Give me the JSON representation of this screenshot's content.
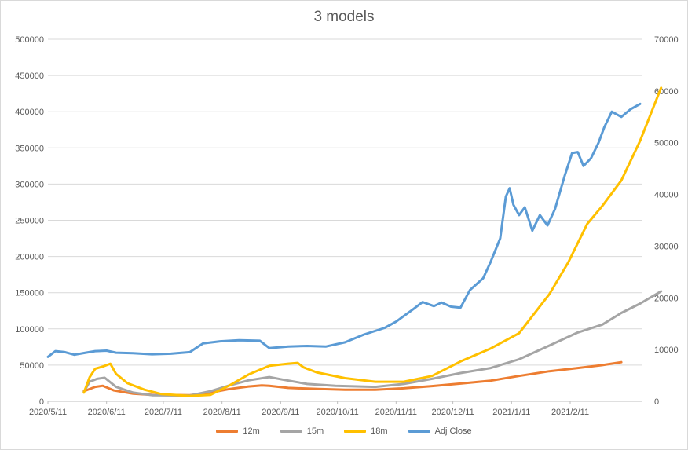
{
  "chart_data": {
    "type": "line",
    "title": "3 models",
    "x_dates": [
      "2020/5/11",
      "2020/6/11",
      "2020/7/11",
      "2020/8/11",
      "2020/9/11",
      "2020/10/11",
      "2020/11/11",
      "2020/12/11",
      "2021/1/11",
      "2021/2/11"
    ],
    "x_tick_labels": [
      "2020/5/11",
      "2020/6/11",
      "2020/7/11",
      "2020/8/11",
      "2020/9/11",
      "2020/10/11",
      "2020/11/11",
      "2020/12/11",
      "2021/1/11",
      "2021/2/11"
    ],
    "y_left_ticks": [
      "0",
      "50000",
      "100000",
      "150000",
      "200000",
      "250000",
      "300000",
      "350000",
      "400000",
      "450000",
      "500000"
    ],
    "y_left_lim": [
      0,
      500000
    ],
    "y_right_ticks": [
      "0",
      "10000",
      "20000",
      "30000",
      "40000",
      "50000",
      "60000",
      "70000"
    ],
    "y_right_lim": [
      0,
      70000
    ],
    "grid": true,
    "legend_position": "bottom",
    "series": [
      {
        "name": "12m",
        "axis": "left",
        "color": "#ED7D31",
        "points": [
          [
            "2020/5/30",
            14000
          ],
          [
            "2020/6/5",
            20000
          ],
          [
            "2020/6/9",
            21500
          ],
          [
            "2020/6/15",
            15000
          ],
          [
            "2020/6/25",
            10500
          ],
          [
            "2020/7/5",
            9000
          ],
          [
            "2020/7/25",
            8500
          ],
          [
            "2020/8/5",
            12000
          ],
          [
            "2020/8/15",
            17000
          ],
          [
            "2020/8/25",
            20500
          ],
          [
            "2020/9/1",
            22000
          ],
          [
            "2020/9/5",
            21500
          ],
          [
            "2020/9/15",
            18500
          ],
          [
            "2020/10/1",
            17000
          ],
          [
            "2020/10/15",
            16000
          ],
          [
            "2020/10/31",
            16000
          ],
          [
            "2020/11/15",
            18000
          ],
          [
            "2020/11/30",
            21000
          ],
          [
            "2020/12/15",
            24500
          ],
          [
            "2020/12/31",
            28500
          ],
          [
            "2021/1/15",
            35000
          ],
          [
            "2021/1/31",
            41500
          ],
          [
            "2021/2/15",
            46000
          ],
          [
            "2021/2/28",
            50000
          ],
          [
            "2021/3/10",
            54000
          ]
        ]
      },
      {
        "name": "15m",
        "axis": "left",
        "color": "#A5A5A5",
        "points": [
          [
            "2020/5/30",
            13000
          ],
          [
            "2020/6/2",
            27000
          ],
          [
            "2020/6/6",
            31000
          ],
          [
            "2020/6/10",
            32500
          ],
          [
            "2020/6/16",
            20000
          ],
          [
            "2020/6/25",
            12000
          ],
          [
            "2020/7/5",
            8500
          ],
          [
            "2020/7/25",
            8000
          ],
          [
            "2020/8/5",
            14000
          ],
          [
            "2020/8/15",
            22000
          ],
          [
            "2020/8/25",
            29000
          ],
          [
            "2020/9/5",
            33500
          ],
          [
            "2020/9/12",
            30000
          ],
          [
            "2020/9/25",
            24000
          ],
          [
            "2020/10/10",
            21500
          ],
          [
            "2020/10/31",
            20000
          ],
          [
            "2020/11/15",
            24000
          ],
          [
            "2020/11/30",
            31000
          ],
          [
            "2020/12/15",
            39000
          ],
          [
            "2020/12/31",
            46000
          ],
          [
            "2021/1/15",
            58000
          ],
          [
            "2021/1/31",
            77000
          ],
          [
            "2021/2/15",
            95000
          ],
          [
            "2021/2/28",
            106000
          ],
          [
            "2021/3/10",
            122000
          ],
          [
            "2021/3/20",
            135000
          ],
          [
            "2021/3/31",
            152000
          ]
        ]
      },
      {
        "name": "18m",
        "axis": "left",
        "color": "#FFC000",
        "points": [
          [
            "2020/5/30",
            12000
          ],
          [
            "2020/6/2",
            33000
          ],
          [
            "2020/6/5",
            45000
          ],
          [
            "2020/6/9",
            48000
          ],
          [
            "2020/6/13",
            52000
          ],
          [
            "2020/6/16",
            38000
          ],
          [
            "2020/6/22",
            25000
          ],
          [
            "2020/7/1",
            16000
          ],
          [
            "2020/7/10",
            10000
          ],
          [
            "2020/7/25",
            7500
          ],
          [
            "2020/8/5",
            9000
          ],
          [
            "2020/8/15",
            22000
          ],
          [
            "2020/8/25",
            37000
          ],
          [
            "2020/9/5",
            49000
          ],
          [
            "2020/9/15",
            52000
          ],
          [
            "2020/9/20",
            53000
          ],
          [
            "2020/9/23",
            47000
          ],
          [
            "2020/9/30",
            40000
          ],
          [
            "2020/10/15",
            32000
          ],
          [
            "2020/10/31",
            27000
          ],
          [
            "2020/11/15",
            27000
          ],
          [
            "2020/11/30",
            35000
          ],
          [
            "2020/12/15",
            55000
          ],
          [
            "2020/12/31",
            73000
          ],
          [
            "2021/1/15",
            94000
          ],
          [
            "2021/1/31",
            148000
          ],
          [
            "2021/2/10",
            192000
          ],
          [
            "2021/2/20",
            245000
          ],
          [
            "2021/2/28",
            270000
          ],
          [
            "2021/3/10",
            305000
          ],
          [
            "2021/3/20",
            360000
          ],
          [
            "2021/3/31",
            433000
          ]
        ]
      },
      {
        "name": "Adj Close",
        "axis": "right",
        "color": "#5B9BD5",
        "points": [
          [
            "2020/5/11",
            8600
          ],
          [
            "2020/5/15",
            9700
          ],
          [
            "2020/5/20",
            9500
          ],
          [
            "2020/5/25",
            9000
          ],
          [
            "2020/5/31",
            9400
          ],
          [
            "2020/6/5",
            9700
          ],
          [
            "2020/6/11",
            9800
          ],
          [
            "2020/6/16",
            9400
          ],
          [
            "2020/6/25",
            9300
          ],
          [
            "2020/7/5",
            9100
          ],
          [
            "2020/7/15",
            9200
          ],
          [
            "2020/7/25",
            9500
          ],
          [
            "2020/8/1",
            11200
          ],
          [
            "2020/8/10",
            11600
          ],
          [
            "2020/8/20",
            11800
          ],
          [
            "2020/8/31",
            11700
          ],
          [
            "2020/9/5",
            10300
          ],
          [
            "2020/9/15",
            10600
          ],
          [
            "2020/9/25",
            10700
          ],
          [
            "2020/10/5",
            10600
          ],
          [
            "2020/10/15",
            11400
          ],
          [
            "2020/10/25",
            12900
          ],
          [
            "2020/11/5",
            14200
          ],
          [
            "2020/11/11",
            15400
          ],
          [
            "2020/11/20",
            17800
          ],
          [
            "2020/11/25",
            19200
          ],
          [
            "2020/12/1",
            18400
          ],
          [
            "2020/12/5",
            19100
          ],
          [
            "2020/12/10",
            18300
          ],
          [
            "2020/12/15",
            18100
          ],
          [
            "2020/12/20",
            21500
          ],
          [
            "2020/12/27",
            23800
          ],
          [
            "2020/12/31",
            27000
          ],
          [
            "2021/1/5",
            31500
          ],
          [
            "2021/1/8",
            39600
          ],
          [
            "2021/1/10",
            41200
          ],
          [
            "2021/1/12",
            38000
          ],
          [
            "2021/1/15",
            36000
          ],
          [
            "2021/1/18",
            37500
          ],
          [
            "2021/1/22",
            33000
          ],
          [
            "2021/1/26",
            36000
          ],
          [
            "2021/1/30",
            34000
          ],
          [
            "2021/2/3",
            37200
          ],
          [
            "2021/2/8",
            43500
          ],
          [
            "2021/2/12",
            48000
          ],
          [
            "2021/2/15",
            48200
          ],
          [
            "2021/2/18",
            45500
          ],
          [
            "2021/2/22",
            47000
          ],
          [
            "2021/2/26",
            50000
          ],
          [
            "2021/3/1",
            53000
          ],
          [
            "2021/3/5",
            56000
          ],
          [
            "2021/3/10",
            55000
          ],
          [
            "2021/3/15",
            56500
          ],
          [
            "2021/3/20",
            57500
          ]
        ]
      }
    ]
  }
}
